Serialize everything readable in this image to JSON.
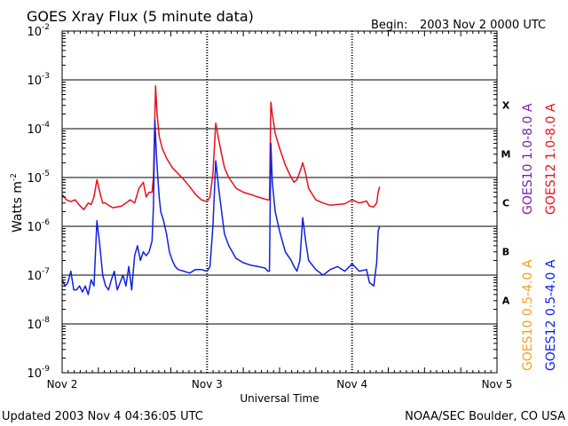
{
  "header": {
    "title": "GOES Xray Flux (5 minute data)",
    "begin_label": "Begin:",
    "begin_value": "2003 Nov 2 0000 UTC"
  },
  "footer": {
    "updated": "Updated 2003 Nov  4 04:36:05 UTC",
    "credit": "NOAA/SEC Boulder, CO USA"
  },
  "colors": {
    "goes10_long": "#7a1fa8",
    "goes12_long": "#e8101a",
    "goes10_short": "#f0a020",
    "goes12_short": "#1020e0",
    "frame": "#000000",
    "background": "#ffffff"
  },
  "chart_data": {
    "type": "line",
    "xlabel": "Universal Time",
    "ylabel": "Watts m",
    "ylabel_sup": "-2",
    "yscale": "log",
    "xlim": [
      0,
      3
    ],
    "ylim": [
      1e-09,
      0.01
    ],
    "grid": "horizontal lines at each decade; vertical dashed lines at day boundaries",
    "x_ticks": [
      {
        "x": 0,
        "label": "Nov 2"
      },
      {
        "x": 1,
        "label": "Nov 3"
      },
      {
        "x": 2,
        "label": "Nov 4"
      },
      {
        "x": 3,
        "label": "Nov 5"
      }
    ],
    "y_ticks": [
      {
        "y": 0.01,
        "base": "10",
        "exp": "-2"
      },
      {
        "y": 0.001,
        "base": "10",
        "exp": "-3"
      },
      {
        "y": 0.0001,
        "base": "10",
        "exp": "-4"
      },
      {
        "y": 1e-05,
        "base": "10",
        "exp": "-5"
      },
      {
        "y": 1e-06,
        "base": "10",
        "exp": "-6"
      },
      {
        "y": 1e-07,
        "base": "10",
        "exp": "-7"
      },
      {
        "y": 1e-08,
        "base": "10",
        "exp": "-8"
      },
      {
        "y": 1e-09,
        "base": "10",
        "exp": "-9"
      }
    ],
    "flare_classes": [
      {
        "label": "X",
        "ymin": 0.0001,
        "ymax": 0.001
      },
      {
        "label": "M",
        "ymin": 1e-05,
        "ymax": 0.0001
      },
      {
        "label": "C",
        "ymin": 1e-06,
        "ymax": 1e-05
      },
      {
        "label": "B",
        "ymin": 1e-07,
        "ymax": 1e-06
      },
      {
        "label": "A",
        "ymin": 1e-08,
        "ymax": 1e-07
      }
    ],
    "legend": {
      "placement": "right",
      "right_column": [
        {
          "name": "GOES12 1.0-8.0 A",
          "color": "#e8101a"
        },
        {
          "name": "GOES12 0.5-4.0 A",
          "color": "#1020e0"
        }
      ],
      "left_column": [
        {
          "name": "GOES10 1.0-8.0 A",
          "color": "#7a1fa8"
        },
        {
          "name": "GOES10 0.5-4.0 A",
          "color": "#f0a020"
        }
      ]
    },
    "series": [
      {
        "name": "GOES12 1.0-8.0 A",
        "color": "#e8101a",
        "x": [
          0,
          0.03,
          0.06,
          0.09,
          0.12,
          0.15,
          0.18,
          0.2,
          0.22,
          0.24,
          0.26,
          0.28,
          0.3,
          0.32,
          0.35,
          0.38,
          0.41,
          0.44,
          0.47,
          0.5,
          0.53,
          0.56,
          0.58,
          0.6,
          0.62,
          0.63,
          0.645,
          0.655,
          0.67,
          0.69,
          0.72,
          0.76,
          0.8,
          0.84,
          0.88,
          0.92,
          0.96,
          1.0,
          1.02,
          1.04,
          1.06,
          1.08,
          1.1,
          1.12,
          1.15,
          1.2,
          1.25,
          1.3,
          1.35,
          1.4,
          1.42,
          1.43,
          1.44,
          1.45,
          1.47,
          1.5,
          1.54,
          1.58,
          1.6,
          1.62,
          1.64,
          1.66,
          1.68,
          1.7,
          1.75,
          1.8,
          1.85,
          1.9,
          1.95,
          2.0,
          2.05,
          2.1,
          2.12,
          2.15,
          2.17,
          2.18,
          2.19
        ],
        "y": [
          4.5e-06,
          3.5e-06,
          3.2e-06,
          3.5e-06,
          2.7e-06,
          2.2e-06,
          3e-06,
          2.8e-06,
          4e-06,
          9e-06,
          5e-06,
          3e-06,
          3e-06,
          2.7e-06,
          2.4e-06,
          2.5e-06,
          2.6e-06,
          3e-06,
          3.5e-06,
          3e-06,
          6e-06,
          8e-06,
          4e-06,
          5e-06,
          5e-06,
          1e-05,
          0.00075,
          0.0002,
          7e-05,
          4e-05,
          2.5e-05,
          1.6e-05,
          1.2e-05,
          9e-06,
          6.5e-06,
          4.5e-06,
          3.5e-06,
          3.2e-06,
          4e-06,
          1.2e-05,
          0.00013,
          6e-05,
          3e-05,
          1.6e-05,
          1e-05,
          6e-06,
          5e-06,
          4.5e-06,
          4e-06,
          3.6e-06,
          3.5e-06,
          3.5e-06,
          0.00035,
          0.0002,
          8e-05,
          4e-05,
          1.8e-05,
          1e-05,
          8e-06,
          9e-06,
          1.3e-05,
          2e-05,
          1.2e-05,
          6e-06,
          3.5e-06,
          3e-06,
          2.7e-06,
          2.8e-06,
          2.9e-06,
          3.5e-06,
          3e-06,
          3.3e-06,
          2.6e-06,
          2.5e-06,
          3e-06,
          5e-06,
          6.5e-06
        ]
      },
      {
        "name": "GOES12 0.5-4.0 A",
        "color": "#1020e0",
        "x": [
          0,
          0.02,
          0.04,
          0.06,
          0.08,
          0.1,
          0.12,
          0.14,
          0.16,
          0.18,
          0.2,
          0.22,
          0.24,
          0.26,
          0.28,
          0.3,
          0.32,
          0.34,
          0.36,
          0.38,
          0.4,
          0.42,
          0.44,
          0.46,
          0.48,
          0.5,
          0.52,
          0.54,
          0.56,
          0.58,
          0.6,
          0.62,
          0.63,
          0.64,
          0.65,
          0.66,
          0.67,
          0.68,
          0.7,
          0.72,
          0.74,
          0.76,
          0.78,
          0.8,
          0.84,
          0.88,
          0.92,
          0.96,
          1.0,
          1.02,
          1.04,
          1.06,
          1.08,
          1.1,
          1.12,
          1.15,
          1.2,
          1.25,
          1.3,
          1.35,
          1.4,
          1.42,
          1.43,
          1.44,
          1.45,
          1.47,
          1.5,
          1.54,
          1.58,
          1.6,
          1.62,
          1.64,
          1.66,
          1.68,
          1.7,
          1.75,
          1.8,
          1.85,
          1.9,
          1.95,
          2.0,
          2.05,
          2.1,
          2.12,
          2.15,
          2.17,
          2.18,
          2.19
        ],
        "y": [
          8e-08,
          6e-08,
          7e-08,
          1.2e-07,
          5e-08,
          5e-08,
          6e-08,
          4.5e-08,
          6e-08,
          4e-08,
          8e-08,
          6e-08,
          1.3e-06,
          4e-07,
          1e-07,
          6e-08,
          5e-08,
          8e-08,
          1.2e-07,
          5e-08,
          7e-08,
          1e-07,
          6e-08,
          1.5e-07,
          5e-08,
          2.5e-07,
          4e-07,
          2e-07,
          3e-07,
          2.5e-07,
          3e-07,
          5e-07,
          2.5e-06,
          0.00015,
          3e-05,
          1e-05,
          4e-06,
          2e-06,
          1.3e-06,
          7e-07,
          3e-07,
          2e-07,
          1.5e-07,
          1.3e-07,
          1.2e-07,
          1.1e-07,
          1.3e-07,
          1.3e-07,
          1.2e-07,
          1.5e-07,
          1e-06,
          2.2e-05,
          6e-06,
          2e-06,
          7e-07,
          4e-07,
          2.2e-07,
          1.8e-07,
          1.6e-07,
          1.5e-07,
          1.4e-07,
          1.2e-07,
          1.2e-07,
          5e-05,
          8e-06,
          2e-06,
          8e-07,
          3e-07,
          2e-07,
          1.5e-07,
          1.2e-07,
          2e-07,
          1.5e-06,
          5e-07,
          2e-07,
          1.3e-07,
          1e-07,
          1.3e-07,
          1.5e-07,
          1.2e-07,
          1.7e-07,
          1.2e-07,
          1.3e-07,
          7e-08,
          6e-08,
          1.8e-07,
          8e-07,
          1e-06
        ]
      }
    ]
  }
}
